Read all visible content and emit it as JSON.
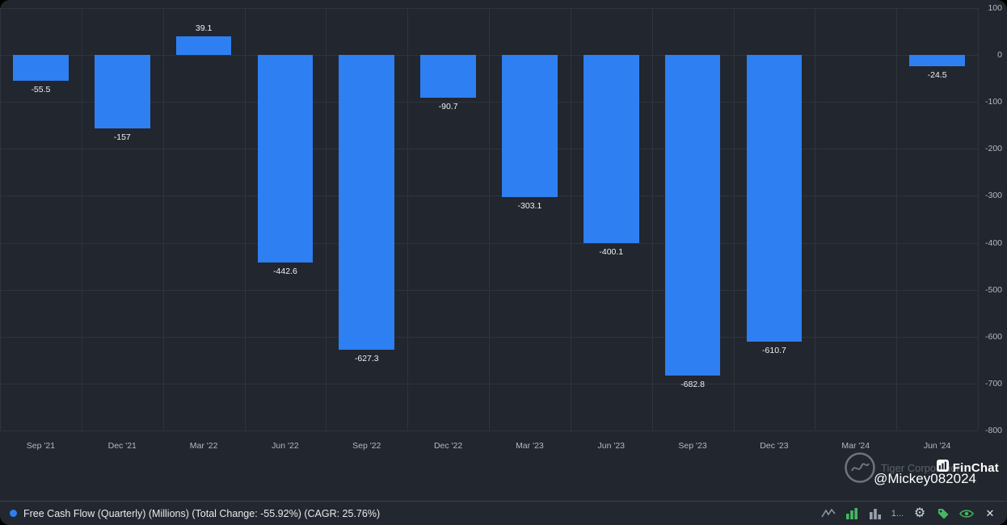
{
  "chart_data": {
    "type": "bar",
    "series_name": "Free Cash Flow (Quarterly) (Millions)",
    "total_change": "-55.92%",
    "cagr": "25.76%",
    "categories": [
      "Sep '21",
      "Dec '21",
      "Mar '22",
      "Jun '22",
      "Sep '22",
      "Dec '22",
      "Mar '23",
      "Jun '23",
      "Sep '23",
      "Dec '23",
      "Mar '24",
      "Jun '24"
    ],
    "values": [
      -55.5,
      -157,
      39.1,
      -442.6,
      -627.3,
      -90.7,
      -303.1,
      -400.1,
      -682.8,
      -610.7,
      null,
      -24.5
    ],
    "value_labels": [
      "-55.5",
      "-157",
      "39.1",
      "-442.6",
      "-627.3",
      "-90.7",
      "-303.1",
      "-400.1",
      "-682.8",
      "-610.7",
      "",
      "-24.5"
    ],
    "ylim": [
      -800,
      100
    ],
    "yticks": [
      100,
      0,
      -100,
      -200,
      -300,
      -400,
      -500,
      -600,
      -700,
      -800
    ],
    "ytick_labels": [
      "100",
      "0",
      "-100",
      "-200",
      "-300",
      "-400",
      "-500",
      "-600",
      "-700",
      "-800"
    ],
    "grid": true,
    "bar_color": "#2e7ff2",
    "legend_position": "bottom-left"
  },
  "legend": {
    "label": "Free Cash Flow (Quarterly) (Millions) (Total Change: -55.92%) (CAGR: 25.76%)",
    "dot_color": "#2e7ff2"
  },
  "footer": {
    "page_indicator": "1..."
  },
  "watermark": {
    "brand": "FinChat",
    "faint_text": "Tiger Corporation",
    "username": "@Mickey082024"
  },
  "colors": {
    "background": "#22262e",
    "grid_line": "#2f343d",
    "axis_text": "#b3b9c2",
    "bar": "#2e7ff2",
    "accent_green": "#45b765"
  }
}
